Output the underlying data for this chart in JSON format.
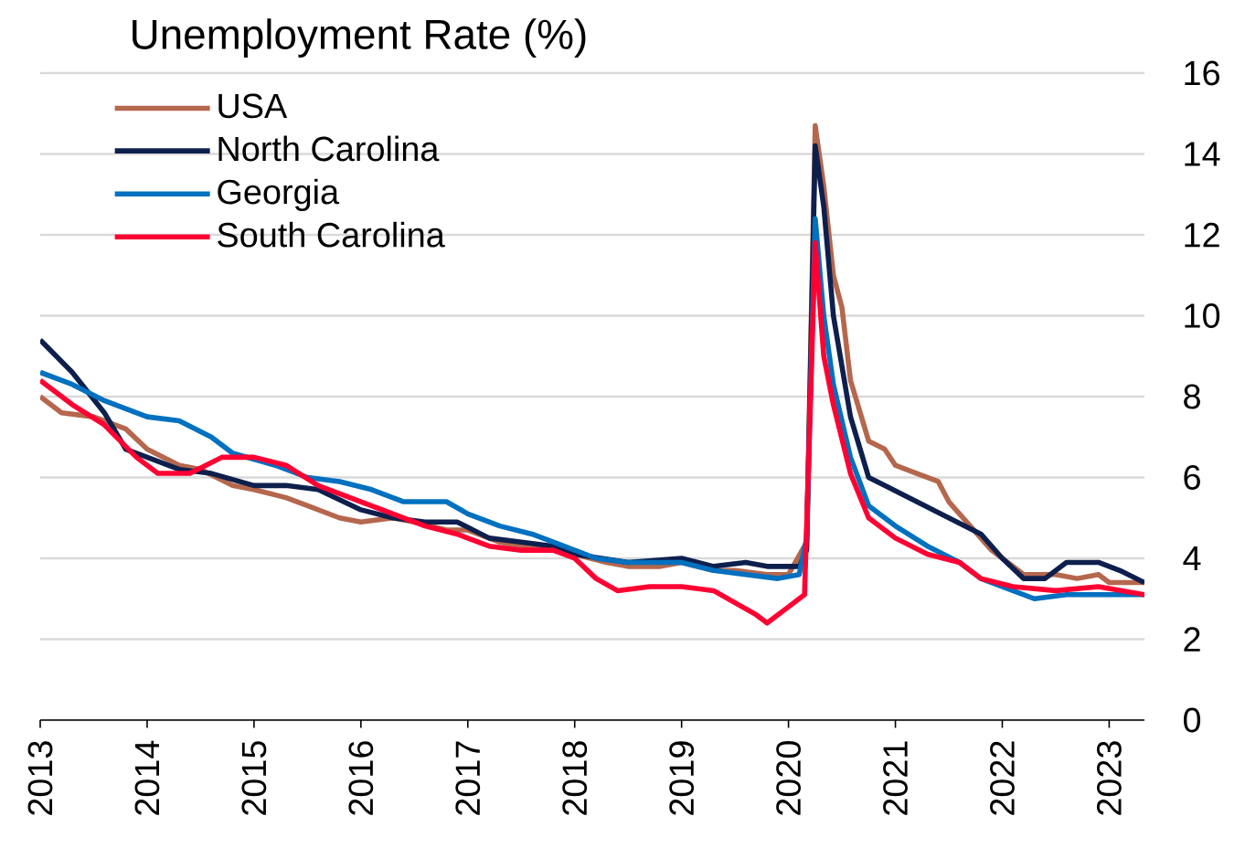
{
  "chart_data": {
    "type": "line",
    "title": "Unemployment Rate (%)",
    "xlim": [
      2013,
      2023.33
    ],
    "xticks": [
      2013,
      2014,
      2015,
      2016,
      2017,
      2018,
      2019,
      2020,
      2021,
      2022,
      2023
    ],
    "ylim": [
      0,
      16
    ],
    "yticks": [
      0,
      2,
      4,
      6,
      8,
      10,
      12,
      14,
      16
    ],
    "grid": "y",
    "legend": "top left",
    "marker": "none",
    "line_style": "solid",
    "series": [
      {
        "name": "USA",
        "color": "#b5674d",
        "x": [
          2013.0,
          2013.2,
          2013.5,
          2013.8,
          2014.0,
          2014.3,
          2014.5,
          2014.8,
          2015.0,
          2015.3,
          2015.5,
          2015.8,
          2016.0,
          2016.3,
          2016.5,
          2016.8,
          2017.0,
          2017.3,
          2017.5,
          2017.8,
          2018.0,
          2018.3,
          2018.5,
          2018.8,
          2019.0,
          2019.3,
          2019.5,
          2019.8,
          2020.0,
          2020.17,
          2020.25,
          2020.33,
          2020.42,
          2020.5,
          2020.58,
          2020.75,
          2020.9,
          2021.0,
          2021.2,
          2021.4,
          2021.5,
          2021.7,
          2021.9,
          2022.0,
          2022.2,
          2022.5,
          2022.7,
          2022.9,
          2023.0,
          2023.33
        ],
        "values": [
          8.0,
          7.6,
          7.5,
          7.2,
          6.7,
          6.3,
          6.2,
          5.8,
          5.7,
          5.5,
          5.3,
          5.0,
          4.9,
          5.0,
          4.9,
          4.7,
          4.7,
          4.4,
          4.3,
          4.2,
          4.1,
          3.9,
          3.8,
          3.8,
          3.9,
          3.7,
          3.7,
          3.6,
          3.6,
          4.4,
          14.7,
          13.2,
          11.0,
          10.2,
          8.4,
          6.9,
          6.7,
          6.3,
          6.1,
          5.9,
          5.4,
          4.8,
          4.2,
          4.0,
          3.6,
          3.6,
          3.5,
          3.6,
          3.4,
          3.4
        ]
      },
      {
        "name": "North Carolina",
        "color": "#0d1f4d",
        "x": [
          2013.0,
          2013.3,
          2013.6,
          2013.8,
          2014.0,
          2014.3,
          2014.6,
          2015.0,
          2015.3,
          2015.6,
          2016.0,
          2016.3,
          2016.6,
          2016.9,
          2017.2,
          2017.5,
          2017.8,
          2018.0,
          2018.5,
          2019.0,
          2019.3,
          2019.6,
          2019.8,
          2020.1,
          2020.17,
          2020.25,
          2020.33,
          2020.42,
          2020.58,
          2020.75,
          2020.9,
          2021.2,
          2021.5,
          2021.8,
          2022.0,
          2022.2,
          2022.4,
          2022.6,
          2022.9,
          2023.1,
          2023.33
        ],
        "values": [
          9.4,
          8.6,
          7.6,
          6.7,
          6.5,
          6.2,
          6.1,
          5.8,
          5.8,
          5.7,
          5.2,
          5.0,
          4.9,
          4.9,
          4.5,
          4.4,
          4.3,
          4.1,
          3.9,
          4.0,
          3.8,
          3.9,
          3.8,
          3.8,
          4.2,
          14.2,
          12.7,
          10.0,
          7.5,
          6.0,
          5.8,
          5.4,
          5.0,
          4.6,
          4.0,
          3.5,
          3.5,
          3.9,
          3.9,
          3.7,
          3.4
        ]
      },
      {
        "name": "Georgia",
        "color": "#0070c0",
        "x": [
          2013.0,
          2013.3,
          2013.6,
          2014.0,
          2014.3,
          2014.6,
          2014.8,
          2015.2,
          2015.5,
          2015.8,
          2016.1,
          2016.4,
          2016.8,
          2017.0,
          2017.3,
          2017.6,
          2017.9,
          2018.2,
          2018.5,
          2019.0,
          2019.3,
          2019.6,
          2019.9,
          2020.1,
          2020.17,
          2020.25,
          2020.33,
          2020.42,
          2020.58,
          2020.75,
          2021.0,
          2021.3,
          2021.6,
          2021.8,
          2022.1,
          2022.3,
          2022.6,
          2022.9,
          2023.33
        ],
        "values": [
          8.6,
          8.3,
          7.9,
          7.5,
          7.4,
          7.0,
          6.6,
          6.3,
          6.0,
          5.9,
          5.7,
          5.4,
          5.4,
          5.1,
          4.8,
          4.6,
          4.3,
          4.0,
          3.9,
          3.9,
          3.7,
          3.6,
          3.5,
          3.6,
          4.5,
          12.4,
          10.0,
          8.3,
          6.5,
          5.3,
          4.8,
          4.3,
          3.9,
          3.5,
          3.2,
          3.0,
          3.1,
          3.1,
          3.1
        ]
      },
      {
        "name": "South Carolina",
        "color": "#ff0033",
        "x": [
          2013.0,
          2013.3,
          2013.6,
          2013.9,
          2014.1,
          2014.4,
          2014.7,
          2015.0,
          2015.3,
          2015.6,
          2016.0,
          2016.3,
          2016.6,
          2016.9,
          2017.2,
          2017.5,
          2017.8,
          2018.0,
          2018.2,
          2018.4,
          2018.7,
          2019.0,
          2019.3,
          2019.5,
          2019.7,
          2019.8,
          2020.0,
          2020.15,
          2020.25,
          2020.33,
          2020.42,
          2020.58,
          2020.75,
          2021.0,
          2021.3,
          2021.6,
          2021.8,
          2022.1,
          2022.5,
          2022.9,
          2023.33
        ],
        "values": [
          8.4,
          7.8,
          7.3,
          6.5,
          6.1,
          6.1,
          6.5,
          6.5,
          6.3,
          5.8,
          5.4,
          5.1,
          4.8,
          4.6,
          4.3,
          4.2,
          4.2,
          4.0,
          3.5,
          3.2,
          3.3,
          3.3,
          3.2,
          2.9,
          2.6,
          2.4,
          2.8,
          3.1,
          11.8,
          9.0,
          7.8,
          6.1,
          5.0,
          4.5,
          4.1,
          3.9,
          3.5,
          3.3,
          3.2,
          3.3,
          3.1
        ]
      }
    ]
  }
}
